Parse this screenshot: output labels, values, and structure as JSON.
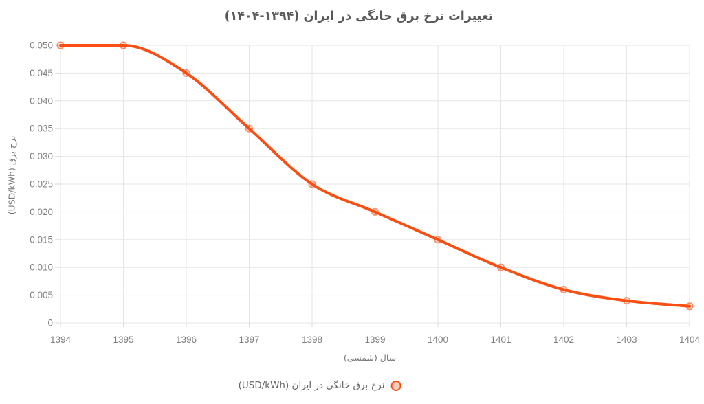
{
  "chart_data": {
    "type": "line",
    "title": "تغییرات نرخ برق خانگی در ایران (۱۳۹۴-۱۴۰۴)",
    "xlabel": "سال (شمسی)",
    "ylabel": "نرخ برق (USD/kWh)",
    "categories": [
      1394,
      1395,
      1396,
      1397,
      1398,
      1399,
      1400,
      1401,
      1402,
      1403,
      1404
    ],
    "x_tick_labels": [
      "1394",
      "1395",
      "1396",
      "1397",
      "1398",
      "1399",
      "1400",
      "1401",
      "1402",
      "1403",
      "1404"
    ],
    "series": [
      {
        "name": "نرخ برق خانگی در ایران (USD/kWh)",
        "values": [
          0.05,
          0.05,
          0.045,
          0.035,
          0.025,
          0.02,
          0.015,
          0.01,
          0.006,
          0.004,
          0.003
        ]
      }
    ],
    "ylim": [
      0,
      0.05
    ],
    "y_ticks": [
      0,
      0.005,
      0.01,
      0.015,
      0.02,
      0.025,
      0.03,
      0.035,
      0.04,
      0.045,
      0.05
    ],
    "y_tick_labels": [
      "0",
      "0.005",
      "0.010",
      "0.015",
      "0.020",
      "0.025",
      "0.030",
      "0.035",
      "0.040",
      "0.045",
      "0.050"
    ],
    "grid": true,
    "curve": "monotone",
    "legend_position": "bottom-center",
    "colors": {
      "line": "#fb4e13",
      "marker_ring": "rgba(251,78,19,0.6)",
      "marker_fill": "rgba(251,78,19,0.22)",
      "legend_marker_fill": "#fcccba",
      "grid": "#e6e6e6",
      "tick": "#dadada",
      "tick_label": "#808080",
      "title": "#58595b",
      "axis_title": "#757575",
      "legend_text": "#666666"
    }
  }
}
